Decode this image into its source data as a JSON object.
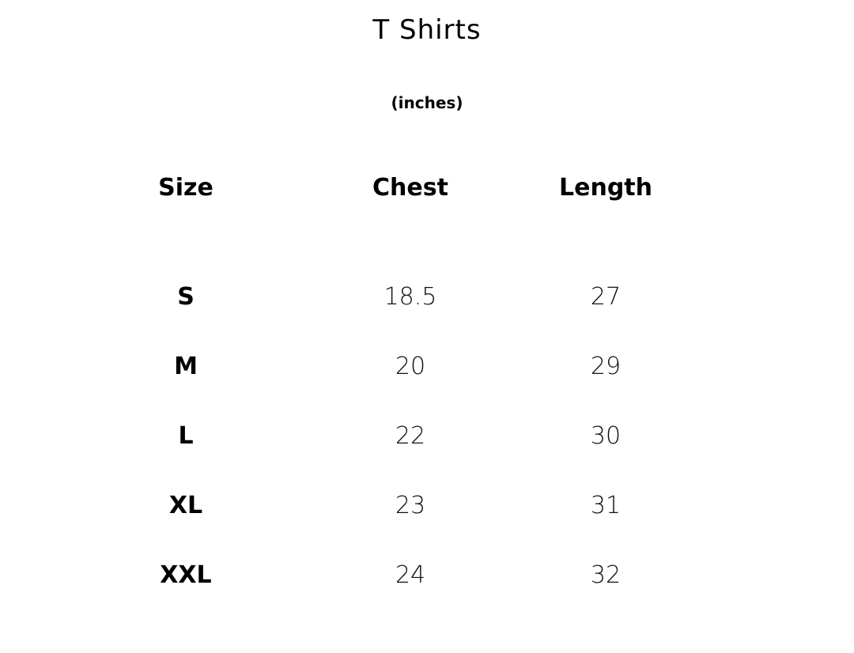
{
  "title": "T Shirts",
  "unit": "(inches)",
  "headers": [
    "Size",
    "Chest",
    "Length"
  ],
  "rows": [
    [
      "S",
      "18.5",
      "27"
    ],
    [
      "M",
      "20",
      "29"
    ],
    [
      "L",
      "22",
      "30"
    ],
    [
      "XL",
      "23",
      "31"
    ],
    [
      "XXL",
      "24",
      "32"
    ]
  ]
}
